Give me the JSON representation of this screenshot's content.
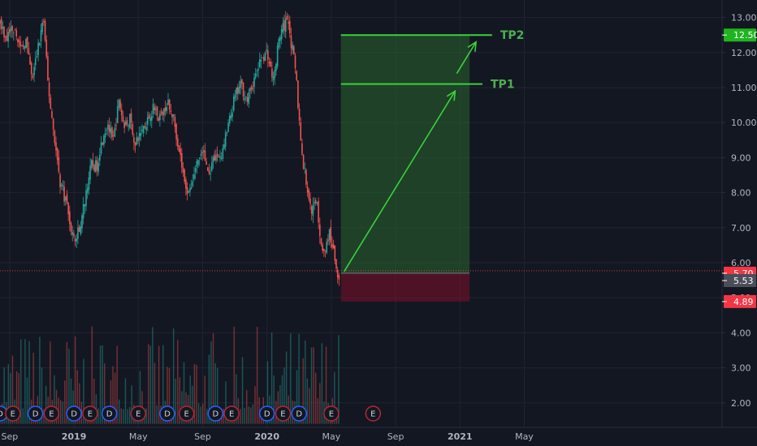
{
  "chart_data": {
    "type": "candlestick",
    "price_axis": {
      "ticks": [
        "2.00",
        "3.00",
        "4.00",
        "5.00",
        "6.00",
        "7.00",
        "8.00",
        "9.00",
        "10.00",
        "11.00",
        "12.00",
        "13.00"
      ],
      "ylim": [
        1.3,
        13.5
      ]
    },
    "time_axis": {
      "ticks": [
        {
          "label": "Sep",
          "t": 0.0
        },
        {
          "label": "2019",
          "t": 4.0
        },
        {
          "label": "May",
          "t": 8.0
        },
        {
          "label": "Sep",
          "t": 12.0
        },
        {
          "label": "2020",
          "t": 16.0
        },
        {
          "label": "May",
          "t": 20.0
        },
        {
          "label": "Sep",
          "t": 24.0
        },
        {
          "label": "2021",
          "t": 28.0
        },
        {
          "label": "May",
          "t": 32.0
        }
      ],
      "xlim": [
        -0.6,
        44.3
      ],
      "t_unit": "months from Sep 2018"
    },
    "price_path": [
      [
        -0.6,
        12.9
      ],
      [
        -0.2,
        12.4
      ],
      [
        0.3,
        12.8
      ],
      [
        0.7,
        12.0
      ],
      [
        1.0,
        12.4
      ],
      [
        1.4,
        11.2
      ],
      [
        1.8,
        12.2
      ],
      [
        2.1,
        13.0
      ],
      [
        2.4,
        11.0
      ],
      [
        2.8,
        9.5
      ],
      [
        3.1,
        8.4
      ],
      [
        3.5,
        7.8
      ],
      [
        3.8,
        7.0
      ],
      [
        4.1,
        6.6
      ],
      [
        4.5,
        7.3
      ],
      [
        4.8,
        8.2
      ],
      [
        5.1,
        8.8
      ],
      [
        5.4,
        8.7
      ],
      [
        5.8,
        9.6
      ],
      [
        6.1,
        10.0
      ],
      [
        6.4,
        9.4
      ],
      [
        6.8,
        10.6
      ],
      [
        7.1,
        9.9
      ],
      [
        7.5,
        10.1
      ],
      [
        7.8,
        9.3
      ],
      [
        8.2,
        9.8
      ],
      [
        8.6,
        10.1
      ],
      [
        9.0,
        10.4
      ],
      [
        9.4,
        10.2
      ],
      [
        9.8,
        10.5
      ],
      [
        10.2,
        10.1
      ],
      [
        10.6,
        9.1
      ],
      [
        10.9,
        8.2
      ],
      [
        11.2,
        8.0
      ],
      [
        11.6,
        8.8
      ],
      [
        12.0,
        9.2
      ],
      [
        12.4,
        8.5
      ],
      [
        12.8,
        9.0
      ],
      [
        13.2,
        9.1
      ],
      [
        13.6,
        9.9
      ],
      [
        14.0,
        10.7
      ],
      [
        14.4,
        11.1
      ],
      [
        14.8,
        10.6
      ],
      [
        15.2,
        11.2
      ],
      [
        15.6,
        11.8
      ],
      [
        16.0,
        12.0
      ],
      [
        16.4,
        11.2
      ],
      [
        16.8,
        12.5
      ],
      [
        17.1,
        12.8
      ],
      [
        17.3,
        13.1
      ],
      [
        17.5,
        12.3
      ],
      [
        17.8,
        11.4
      ],
      [
        18.0,
        10.1
      ],
      [
        18.2,
        9.0
      ],
      [
        18.5,
        8.1
      ],
      [
        18.8,
        7.4
      ],
      [
        19.1,
        7.9
      ],
      [
        19.3,
        6.6
      ],
      [
        19.6,
        6.3
      ],
      [
        19.9,
        6.9
      ],
      [
        20.1,
        6.4
      ],
      [
        20.3,
        5.9
      ],
      [
        20.5,
        5.53
      ]
    ],
    "current_price": "5.53",
    "position": {
      "entry": "5.70",
      "stop": "4.89",
      "target": "12.50",
      "t_start": 20.6,
      "t_end": 28.6
    },
    "take_profits": [
      {
        "label": "TP1",
        "price": 11.1,
        "t_start": 20.6,
        "t_end": 29.4
      },
      {
        "label": "TP2",
        "price": 12.5,
        "t_start": 20.6,
        "t_end": 30.0
      }
    ],
    "arrows": [
      {
        "from": [
          20.8,
          5.75
        ],
        "to": [
          27.7,
          10.9
        ]
      },
      {
        "from": [
          27.8,
          11.4
        ],
        "to": [
          29.0,
          12.3
        ]
      }
    ],
    "events": [
      {
        "label": "D",
        "t": -0.6
      },
      {
        "label": "E",
        "t": 0.2
      },
      {
        "label": "D",
        "t": 1.6
      },
      {
        "label": "E",
        "t": 2.6
      },
      {
        "label": "D",
        "t": 4.0
      },
      {
        "label": "E",
        "t": 5.0
      },
      {
        "label": "D",
        "t": 6.2
      },
      {
        "label": "E",
        "t": 8.0
      },
      {
        "label": "D",
        "t": 9.8
      },
      {
        "label": "E",
        "t": 11.0
      },
      {
        "label": "D",
        "t": 12.8
      },
      {
        "label": "E",
        "t": 13.8
      },
      {
        "label": "D",
        "t": 16.0
      },
      {
        "label": "E",
        "t": 17.0
      },
      {
        "label": "D",
        "t": 18.0
      },
      {
        "label": "E",
        "t": 20.0
      },
      {
        "label": "E",
        "t": 22.6
      }
    ],
    "volume_band_price": [
      1.4,
      4.2
    ]
  },
  "colors": {
    "background": "#131722",
    "grid": "#1f2430",
    "up": "#26a69a",
    "down": "#ef5350",
    "tp_line": "#3ad13a",
    "target_zone": "rgba(46,125,50,0.42)",
    "stop_zone": "rgba(136,14,40,0.5)",
    "target_badge": "#1fb41f",
    "stop_badge": "#f23645",
    "current_badge": "#4a4e58",
    "event_dividend": "#2962ff",
    "event_earnings": "#b22833"
  }
}
